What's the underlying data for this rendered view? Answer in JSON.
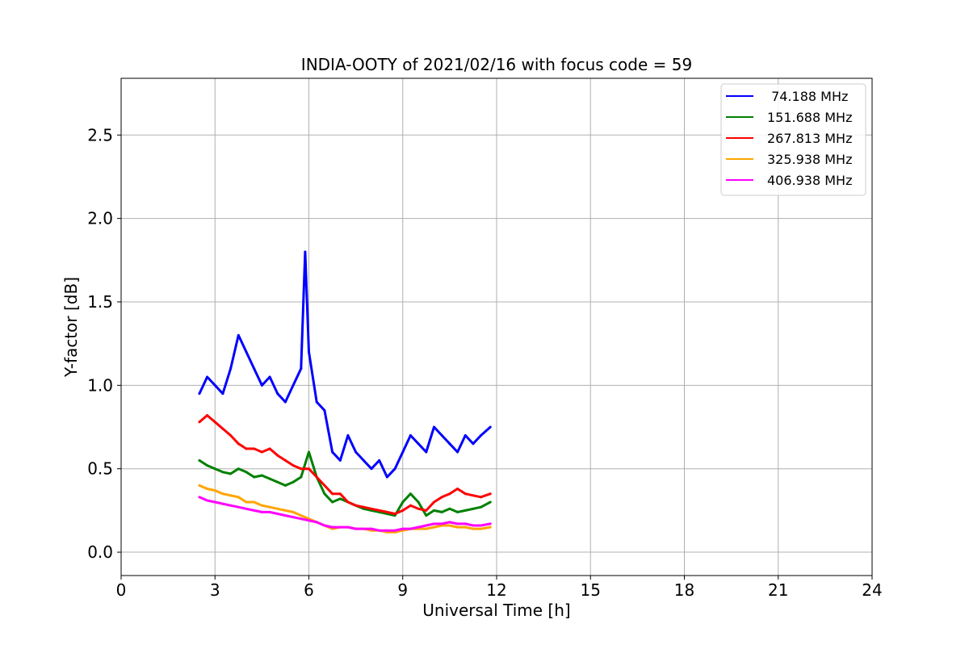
{
  "chart_data": {
    "type": "line",
    "title": "INDIA-OOTY of 2021/02/16 with focus code = 59",
    "xlabel": "Universal Time [h]",
    "ylabel": "Y-factor [dB]",
    "xlim": [
      0,
      24
    ],
    "ylim": [
      -0.14,
      2.84
    ],
    "x_ticks": [
      0,
      3,
      6,
      9,
      12,
      15,
      18,
      21,
      24
    ],
    "x_tick_labels": [
      "0",
      "3",
      "6",
      "9",
      "12",
      "15",
      "18",
      "21",
      "24"
    ],
    "y_ticks": [
      0.0,
      0.5,
      1.0,
      1.5,
      2.0,
      2.5
    ],
    "y_tick_labels": [
      "0.0",
      "0.5",
      "1.0",
      "1.5",
      "2.0",
      "2.5"
    ],
    "grid": true,
    "legend_position": "top-right",
    "series": [
      {
        "name": " 74.188 MHz",
        "color": "#0000ff",
        "x": [
          2.5,
          2.75,
          3.0,
          3.25,
          3.5,
          3.75,
          4.0,
          4.25,
          4.5,
          4.75,
          5.0,
          5.25,
          5.5,
          5.75,
          5.88,
          6.0,
          6.25,
          6.5,
          6.75,
          7.0,
          7.25,
          7.5,
          7.75,
          8.0,
          8.25,
          8.5,
          8.75,
          9.0,
          9.25,
          9.5,
          9.75,
          10.0,
          10.25,
          10.5,
          10.75,
          11.0,
          11.25,
          11.5,
          11.8
        ],
        "y": [
          0.95,
          1.05,
          1.0,
          0.95,
          1.1,
          1.3,
          1.2,
          1.1,
          1.0,
          1.05,
          0.95,
          0.9,
          1.0,
          1.1,
          1.8,
          1.2,
          0.9,
          0.85,
          0.6,
          0.55,
          0.7,
          0.6,
          0.55,
          0.5,
          0.55,
          0.45,
          0.5,
          0.6,
          0.7,
          0.65,
          0.6,
          0.75,
          0.7,
          0.65,
          0.6,
          0.7,
          0.65,
          0.7,
          0.75
        ]
      },
      {
        "name": "151.688 MHz",
        "color": "#008000",
        "x": [
          2.5,
          2.75,
          3.0,
          3.25,
          3.5,
          3.75,
          4.0,
          4.25,
          4.5,
          4.75,
          5.0,
          5.25,
          5.5,
          5.75,
          6.0,
          6.25,
          6.5,
          6.75,
          7.0,
          7.25,
          7.5,
          7.75,
          8.0,
          8.25,
          8.5,
          8.75,
          9.0,
          9.25,
          9.5,
          9.75,
          10.0,
          10.25,
          10.5,
          10.75,
          11.0,
          11.25,
          11.5,
          11.8
        ],
        "y": [
          0.55,
          0.52,
          0.5,
          0.48,
          0.47,
          0.5,
          0.48,
          0.45,
          0.46,
          0.44,
          0.42,
          0.4,
          0.42,
          0.45,
          0.6,
          0.45,
          0.35,
          0.3,
          0.32,
          0.3,
          0.28,
          0.26,
          0.25,
          0.24,
          0.23,
          0.22,
          0.3,
          0.35,
          0.3,
          0.22,
          0.25,
          0.24,
          0.26,
          0.24,
          0.25,
          0.26,
          0.27,
          0.3
        ]
      },
      {
        "name": "267.813 MHz",
        "color": "#ff0000",
        "x": [
          2.5,
          2.75,
          3.0,
          3.25,
          3.5,
          3.75,
          4.0,
          4.25,
          4.5,
          4.75,
          5.0,
          5.25,
          5.5,
          5.75,
          6.0,
          6.25,
          6.5,
          6.75,
          7.0,
          7.25,
          7.5,
          7.75,
          8.0,
          8.25,
          8.5,
          8.75,
          9.0,
          9.25,
          9.5,
          9.75,
          10.0,
          10.25,
          10.5,
          10.75,
          11.0,
          11.25,
          11.5,
          11.8
        ],
        "y": [
          0.78,
          0.82,
          0.78,
          0.74,
          0.7,
          0.65,
          0.62,
          0.62,
          0.6,
          0.62,
          0.58,
          0.55,
          0.52,
          0.5,
          0.5,
          0.45,
          0.4,
          0.35,
          0.35,
          0.3,
          0.28,
          0.27,
          0.26,
          0.25,
          0.24,
          0.23,
          0.25,
          0.28,
          0.26,
          0.25,
          0.3,
          0.33,
          0.35,
          0.38,
          0.35,
          0.34,
          0.33,
          0.35
        ]
      },
      {
        "name": "325.938 MHz",
        "color": "#ffa500",
        "x": [
          2.5,
          2.75,
          3.0,
          3.25,
          3.5,
          3.75,
          4.0,
          4.25,
          4.5,
          4.75,
          5.0,
          5.25,
          5.5,
          5.75,
          6.0,
          6.25,
          6.5,
          6.75,
          7.0,
          7.25,
          7.5,
          7.75,
          8.0,
          8.25,
          8.5,
          8.75,
          9.0,
          9.25,
          9.5,
          9.75,
          10.0,
          10.25,
          10.5,
          10.75,
          11.0,
          11.25,
          11.5,
          11.8
        ],
        "y": [
          0.4,
          0.38,
          0.37,
          0.35,
          0.34,
          0.33,
          0.3,
          0.3,
          0.28,
          0.27,
          0.26,
          0.25,
          0.24,
          0.22,
          0.2,
          0.18,
          0.16,
          0.14,
          0.15,
          0.15,
          0.14,
          0.14,
          0.13,
          0.13,
          0.12,
          0.12,
          0.13,
          0.14,
          0.14,
          0.14,
          0.15,
          0.16,
          0.16,
          0.15,
          0.15,
          0.14,
          0.14,
          0.15
        ]
      },
      {
        "name": "406.938 MHz",
        "color": "#ff00ff",
        "x": [
          2.5,
          2.75,
          3.0,
          3.25,
          3.5,
          3.75,
          4.0,
          4.25,
          4.5,
          4.75,
          5.0,
          5.25,
          5.5,
          5.75,
          6.0,
          6.25,
          6.5,
          6.75,
          7.0,
          7.25,
          7.5,
          7.75,
          8.0,
          8.25,
          8.5,
          8.75,
          9.0,
          9.25,
          9.5,
          9.75,
          10.0,
          10.25,
          10.5,
          10.75,
          11.0,
          11.25,
          11.5,
          11.8
        ],
        "y": [
          0.33,
          0.31,
          0.3,
          0.29,
          0.28,
          0.27,
          0.26,
          0.25,
          0.24,
          0.24,
          0.23,
          0.22,
          0.21,
          0.2,
          0.19,
          0.18,
          0.16,
          0.15,
          0.15,
          0.15,
          0.14,
          0.14,
          0.14,
          0.13,
          0.13,
          0.13,
          0.14,
          0.14,
          0.15,
          0.16,
          0.17,
          0.17,
          0.18,
          0.17,
          0.17,
          0.16,
          0.16,
          0.17
        ]
      }
    ]
  }
}
